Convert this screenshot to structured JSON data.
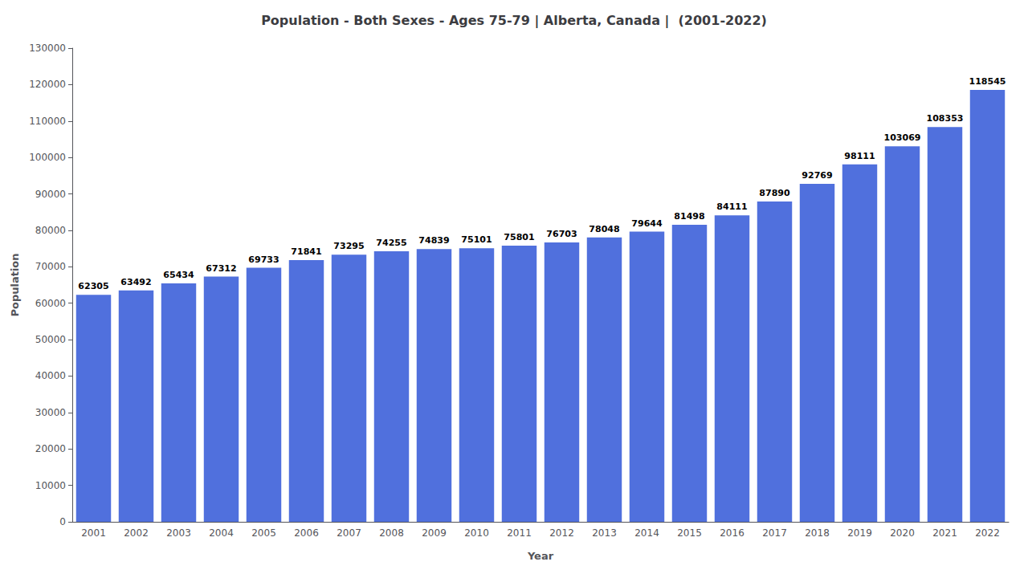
{
  "chart_data": {
    "type": "bar",
    "title": "Population - Both Sexes - Ages 75-79 | Alberta, Canada |  (2001-2022)",
    "xlabel": "Year",
    "ylabel": "Population",
    "categories": [
      "2001",
      "2002",
      "2003",
      "2004",
      "2005",
      "2006",
      "2007",
      "2008",
      "2009",
      "2010",
      "2011",
      "2012",
      "2013",
      "2014",
      "2015",
      "2016",
      "2017",
      "2018",
      "2019",
      "2020",
      "2021",
      "2022"
    ],
    "values": [
      62305,
      63492,
      65434,
      67312,
      69733,
      71841,
      73295,
      74255,
      74839,
      75101,
      75801,
      76703,
      78048,
      79644,
      81498,
      84111,
      87890,
      92769,
      98111,
      103069,
      108353,
      118545
    ],
    "ylim": [
      0,
      130000
    ],
    "yticks": [
      0,
      10000,
      20000,
      30000,
      40000,
      50000,
      60000,
      70000,
      80000,
      90000,
      100000,
      110000,
      120000,
      130000
    ],
    "data_labels": true,
    "grid": false
  }
}
